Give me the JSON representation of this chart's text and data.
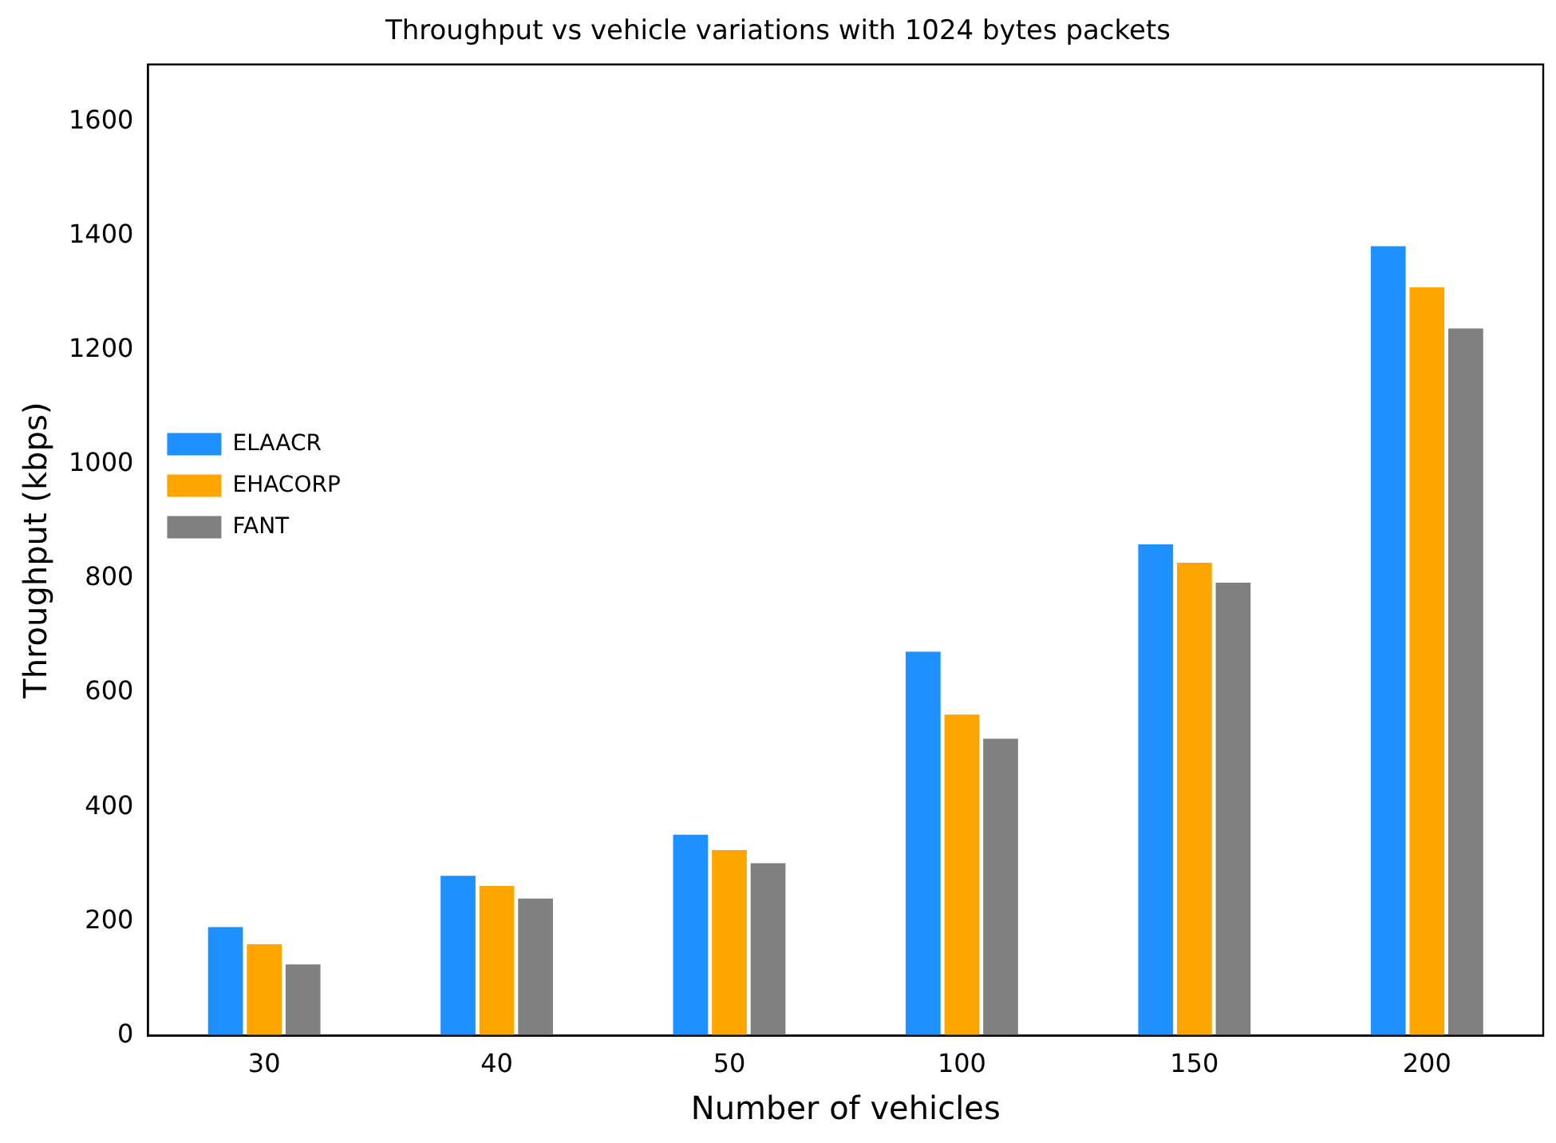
{
  "chart_data": {
    "type": "bar",
    "title": "Throughput vs vehicle variations with 1024 bytes packets",
    "xlabel": "Number of vehicles",
    "ylabel": "Throughput (kbps)",
    "categories": [
      "30",
      "40",
      "50",
      "100",
      "150",
      "200"
    ],
    "series": [
      {
        "name": "ELAACR",
        "color": "#1e90ff",
        "values": [
          190,
          280,
          352,
          672,
          860,
          1382
        ]
      },
      {
        "name": "EHACORP",
        "color": "#ffa500",
        "values": [
          160,
          262,
          325,
          562,
          828,
          1310
        ]
      },
      {
        "name": "FANT",
        "color": "#808080",
        "values": [
          125,
          240,
          302,
          520,
          793,
          1238
        ]
      }
    ],
    "ylim": [
      0,
      1700
    ],
    "yticks": [
      0,
      200,
      400,
      600,
      800,
      1000,
      1200,
      1400,
      1600
    ],
    "grid": false,
    "legend": "top"
  }
}
